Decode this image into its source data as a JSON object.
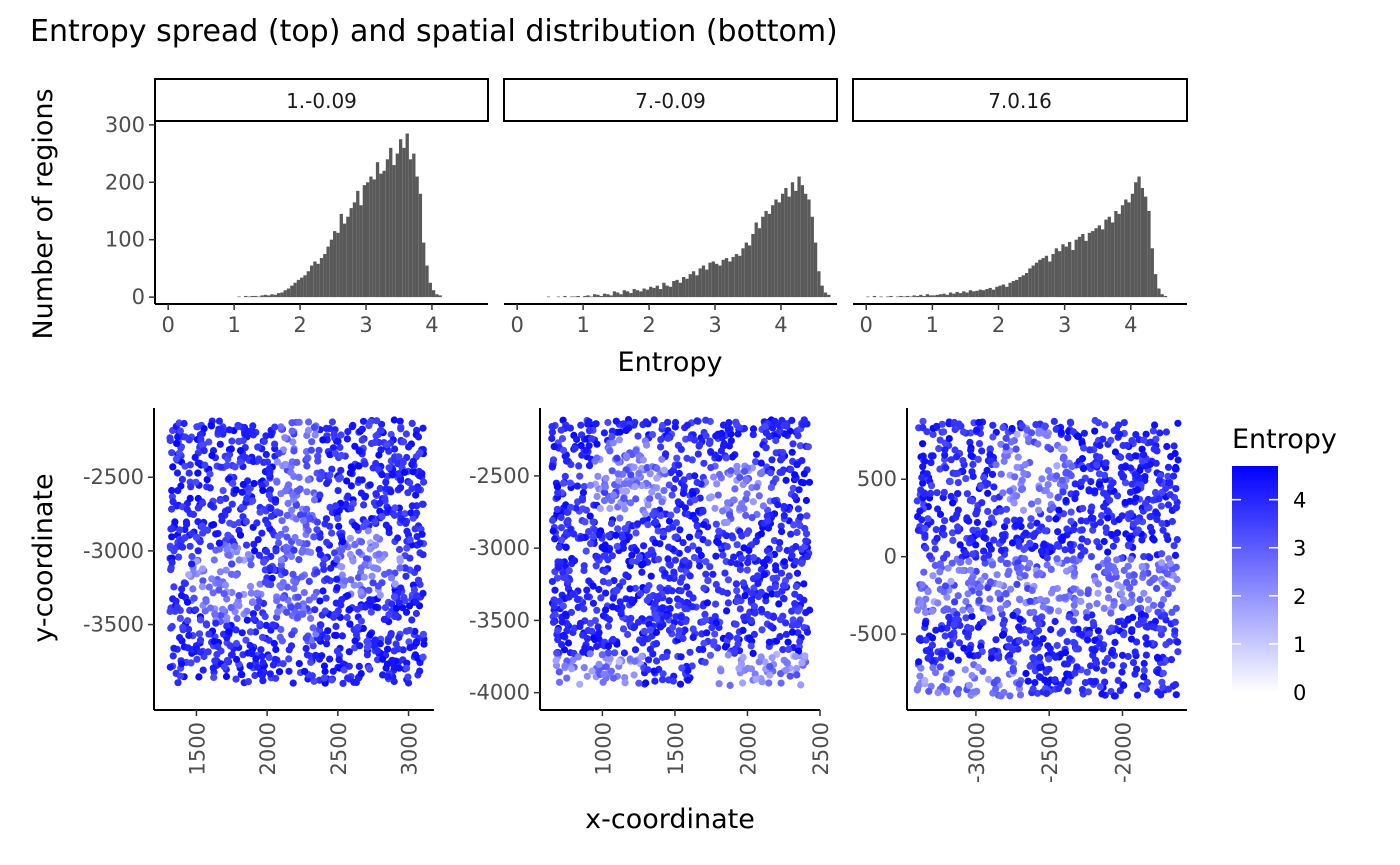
{
  "title": "Entropy spread (top) and spatial distribution (bottom)",
  "colors": {
    "bar": "#595959",
    "low": "#ffffff",
    "high": "#0000ff",
    "axis": "#000000",
    "tick_text": "#4d4d4d"
  },
  "chart_data": [
    {
      "type": "bar",
      "chart_role": "histogram-facets",
      "xlabel": "Entropy",
      "ylabel": "Number of regions",
      "xlim": [
        -0.2,
        4.85
      ],
      "ylim": [
        -12,
        305
      ],
      "xticks": [
        0,
        1,
        2,
        3,
        4
      ],
      "yticks": [
        0,
        100,
        200,
        300
      ],
      "bin_width": 0.05,
      "panels": [
        {
          "label": "1.-0.09",
          "bins_start": 1.05,
          "counts": [
            1,
            0,
            2,
            1,
            2,
            2,
            1,
            3,
            4,
            3,
            5,
            4,
            7,
            8,
            12,
            15,
            20,
            25,
            30,
            34,
            38,
            45,
            55,
            62,
            58,
            68,
            75,
            88,
            100,
            115,
            112,
            145,
            128,
            140,
            155,
            165,
            185,
            160,
            195,
            200,
            210,
            205,
            235,
            215,
            220,
            240,
            260,
            230,
            250,
            275,
            260,
            285,
            240,
            250,
            210,
            180,
            95,
            55,
            25,
            12,
            5,
            3
          ]
        },
        {
          "label": "7.-0.09",
          "bins_start": 0.4,
          "counts": [
            0,
            1,
            0,
            0,
            1,
            0,
            2,
            0,
            1,
            1,
            2,
            0,
            2,
            3,
            1,
            5,
            4,
            2,
            6,
            5,
            3,
            10,
            8,
            5,
            12,
            10,
            7,
            14,
            12,
            10,
            15,
            13,
            18,
            16,
            20,
            14,
            25,
            20,
            18,
            28,
            30,
            25,
            35,
            32,
            40,
            45,
            38,
            50,
            55,
            48,
            60,
            62,
            58,
            55,
            65,
            68,
            62,
            70,
            75,
            72,
            85,
            95,
            90,
            110,
            130,
            120,
            140,
            150,
            145,
            160,
            170,
            165,
            180,
            190,
            175,
            200,
            185,
            210,
            195,
            180,
            170,
            140,
            95,
            45,
            20,
            8,
            4
          ]
        },
        {
          "label": "7.0.16",
          "bins_start": 0.0,
          "counts": [
            1,
            0,
            2,
            0,
            1,
            0,
            1,
            2,
            0,
            1,
            2,
            1,
            2,
            1,
            3,
            2,
            4,
            2,
            5,
            3,
            3,
            4,
            5,
            6,
            4,
            8,
            6,
            9,
            7,
            10,
            8,
            12,
            10,
            11,
            13,
            12,
            14,
            16,
            13,
            18,
            20,
            22,
            18,
            25,
            28,
            30,
            35,
            38,
            42,
            50,
            55,
            60,
            65,
            68,
            72,
            62,
            75,
            85,
            80,
            92,
            88,
            96,
            82,
            100,
            105,
            110,
            98,
            112,
            115,
            120,
            125,
            118,
            135,
            140,
            130,
            150,
            145,
            160,
            170,
            165,
            180,
            200,
            210,
            190,
            175,
            150,
            85,
            40,
            15,
            5,
            2
          ]
        }
      ]
    },
    {
      "type": "scatter",
      "chart_role": "spatial-facets",
      "xlabel": "x-coordinate",
      "ylabel": "y-coordinate",
      "color_variable": "Entropy",
      "panels": [
        {
          "xlim": [
            1200,
            3180
          ],
          "ylim": [
            -4080,
            -2030
          ],
          "xticks": [
            1500,
            2000,
            2500,
            3000
          ],
          "yticks": [
            -2500,
            -3000,
            -3500
          ],
          "point_xrange": [
            1310,
            3110
          ],
          "point_yrange": [
            -3900,
            -2110
          ]
        },
        {
          "xlim": [
            570,
            2500
          ],
          "ylim": [
            -4120,
            -2030
          ],
          "xticks": [
            1000,
            1500,
            2000,
            2500
          ],
          "yticks": [
            -2500,
            -3000,
            -3500,
            -4000
          ],
          "point_xrange": [
            650,
            2430
          ],
          "point_yrange": [
            -3950,
            -2110
          ]
        },
        {
          "xlim": [
            -3470,
            -1560
          ],
          "ylim": [
            -990,
            960
          ],
          "xticks": [
            -3000,
            -2500,
            -2000
          ],
          "yticks": [
            500,
            0,
            -500
          ],
          "point_xrange": [
            -3400,
            -1620
          ],
          "point_yrange": [
            -900,
            880
          ]
        }
      ]
    }
  ],
  "legend": {
    "title": "Entropy",
    "range": [
      0,
      4.7
    ],
    "ticks": [
      "4",
      "3",
      "2",
      "1",
      "0"
    ],
    "tick_values": [
      4,
      3,
      2,
      1,
      0
    ]
  }
}
